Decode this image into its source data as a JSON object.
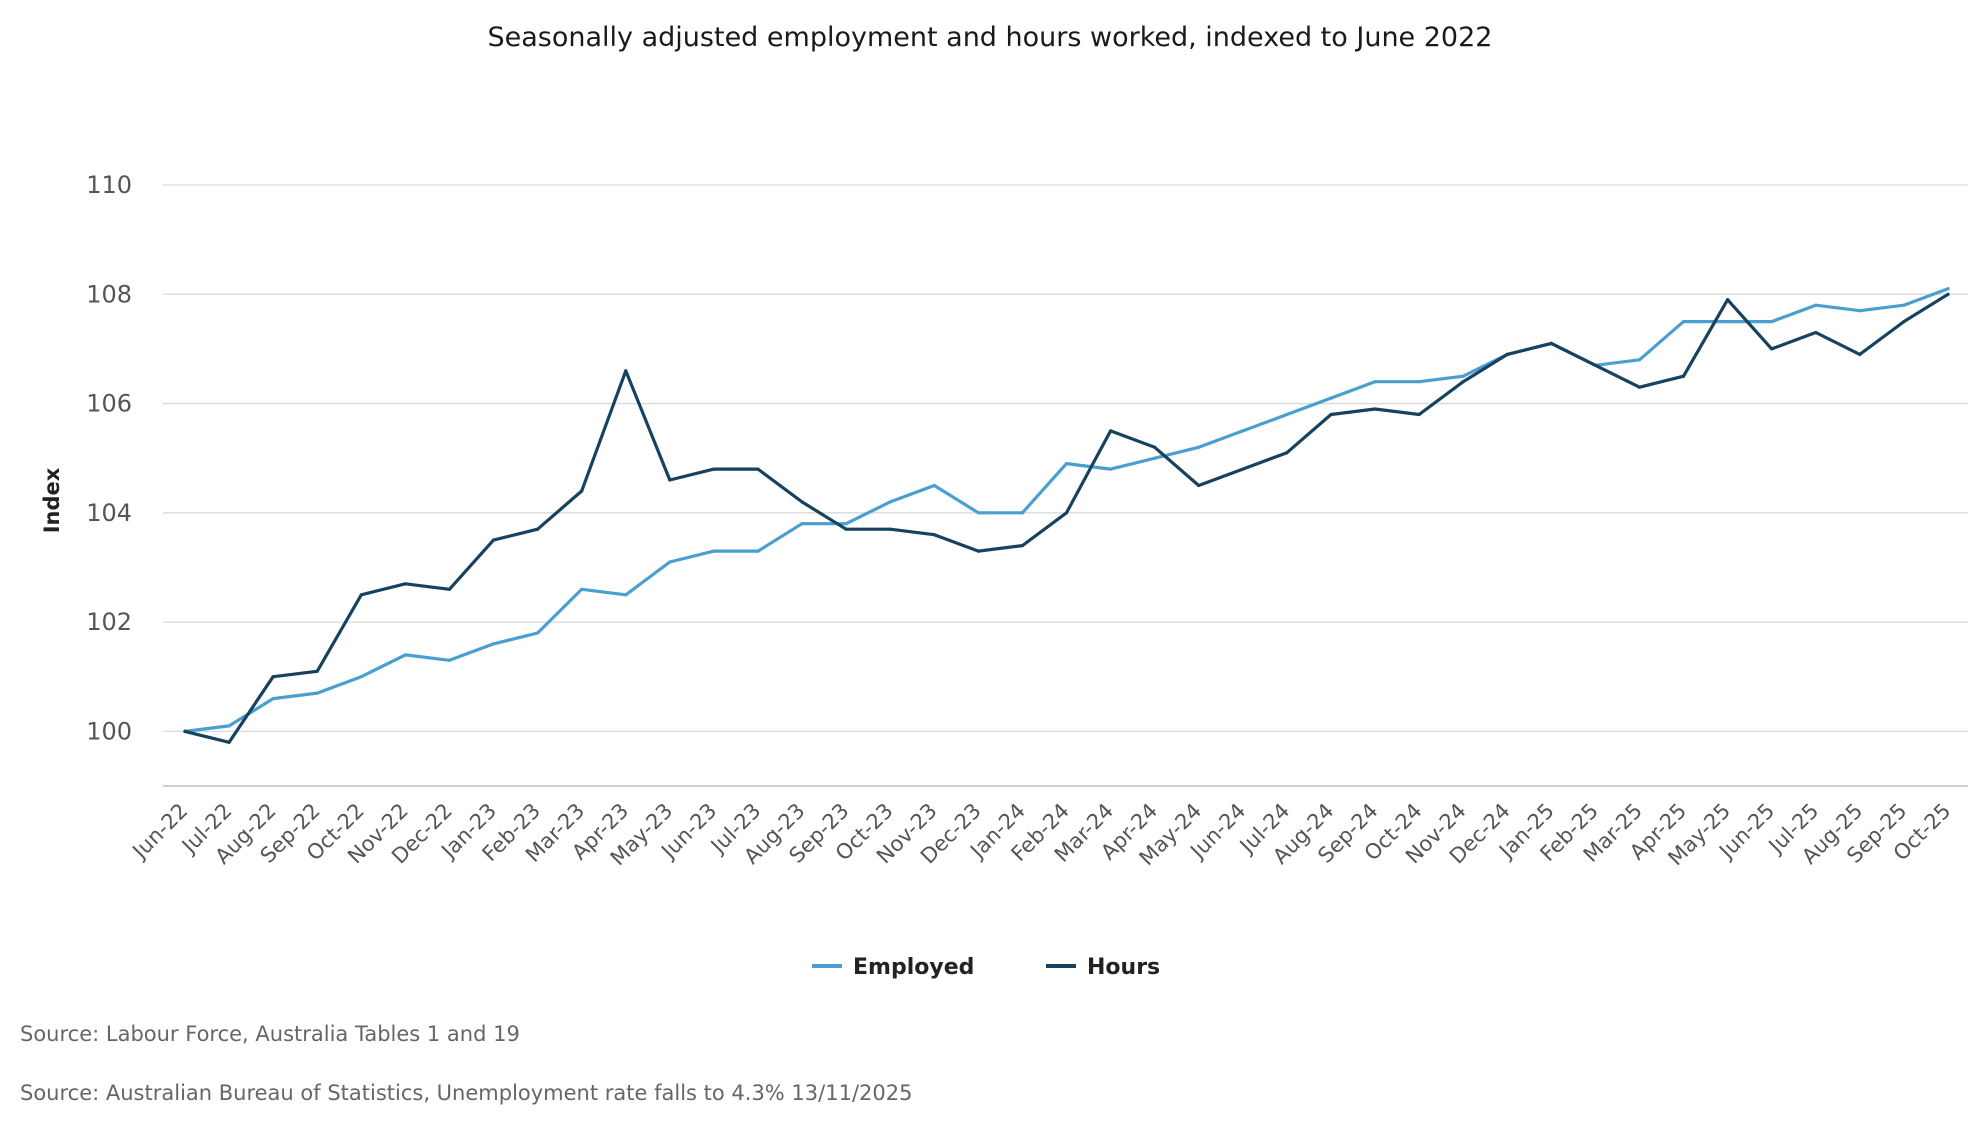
{
  "chart_data": {
    "type": "line",
    "title": "Seasonally adjusted employment and hours worked, indexed to June 2022",
    "xlabel": "",
    "ylabel": "Index",
    "ylim": [
      99,
      110
    ],
    "yticks": [
      100,
      102,
      104,
      106,
      108,
      110
    ],
    "grid": true,
    "legend_position": "bottom",
    "categories": [
      "Jun-22",
      "Jul-22",
      "Aug-22",
      "Sep-22",
      "Oct-22",
      "Nov-22",
      "Dec-22",
      "Jan-23",
      "Feb-23",
      "Mar-23",
      "Apr-23",
      "May-23",
      "Jun-23",
      "Jul-23",
      "Aug-23",
      "Sep-23",
      "Oct-23",
      "Nov-23",
      "Dec-23",
      "Jan-24",
      "Feb-24",
      "Mar-24",
      "Apr-24",
      "May-24",
      "Jun-24",
      "Jul-24",
      "Aug-24",
      "Sep-24",
      "Oct-24",
      "Nov-24",
      "Dec-24",
      "Jan-25",
      "Feb-25",
      "Mar-25",
      "Apr-25",
      "May-25",
      "Jun-25",
      "Jul-25",
      "Aug-25",
      "Sep-25",
      "Oct-25"
    ],
    "series": [
      {
        "name": "Employed",
        "color": "#4a9fd0",
        "values": [
          100.0,
          100.1,
          100.6,
          100.7,
          101.0,
          101.4,
          101.3,
          101.6,
          101.8,
          102.6,
          102.5,
          103.1,
          103.3,
          103.3,
          103.8,
          103.8,
          104.2,
          104.5,
          104.0,
          104.0,
          104.9,
          104.8,
          105.0,
          105.2,
          105.5,
          105.8,
          106.1,
          106.4,
          106.4,
          106.5,
          106.9,
          107.1,
          106.7,
          106.8,
          107.5,
          107.5,
          107.5,
          107.8,
          107.7,
          107.8,
          108.1
        ]
      },
      {
        "name": "Hours",
        "color": "#17425f",
        "values": [
          100.0,
          99.8,
          101.0,
          101.1,
          102.5,
          102.7,
          102.6,
          103.5,
          103.7,
          104.4,
          106.6,
          104.6,
          104.8,
          104.8,
          104.2,
          103.7,
          103.7,
          103.6,
          103.3,
          103.4,
          104.0,
          105.5,
          105.2,
          104.5,
          104.8,
          105.1,
          105.8,
          105.9,
          105.8,
          106.4,
          106.9,
          107.1,
          106.7,
          106.3,
          106.5,
          107.9,
          107.0,
          107.3,
          106.9,
          107.5,
          108.0
        ]
      }
    ],
    "sources": [
      "Source: Labour Force, Australia Tables 1 and 19",
      "Source: Australian Bureau of Statistics, Unemployment rate falls to 4.3% 13/11/2025"
    ]
  }
}
